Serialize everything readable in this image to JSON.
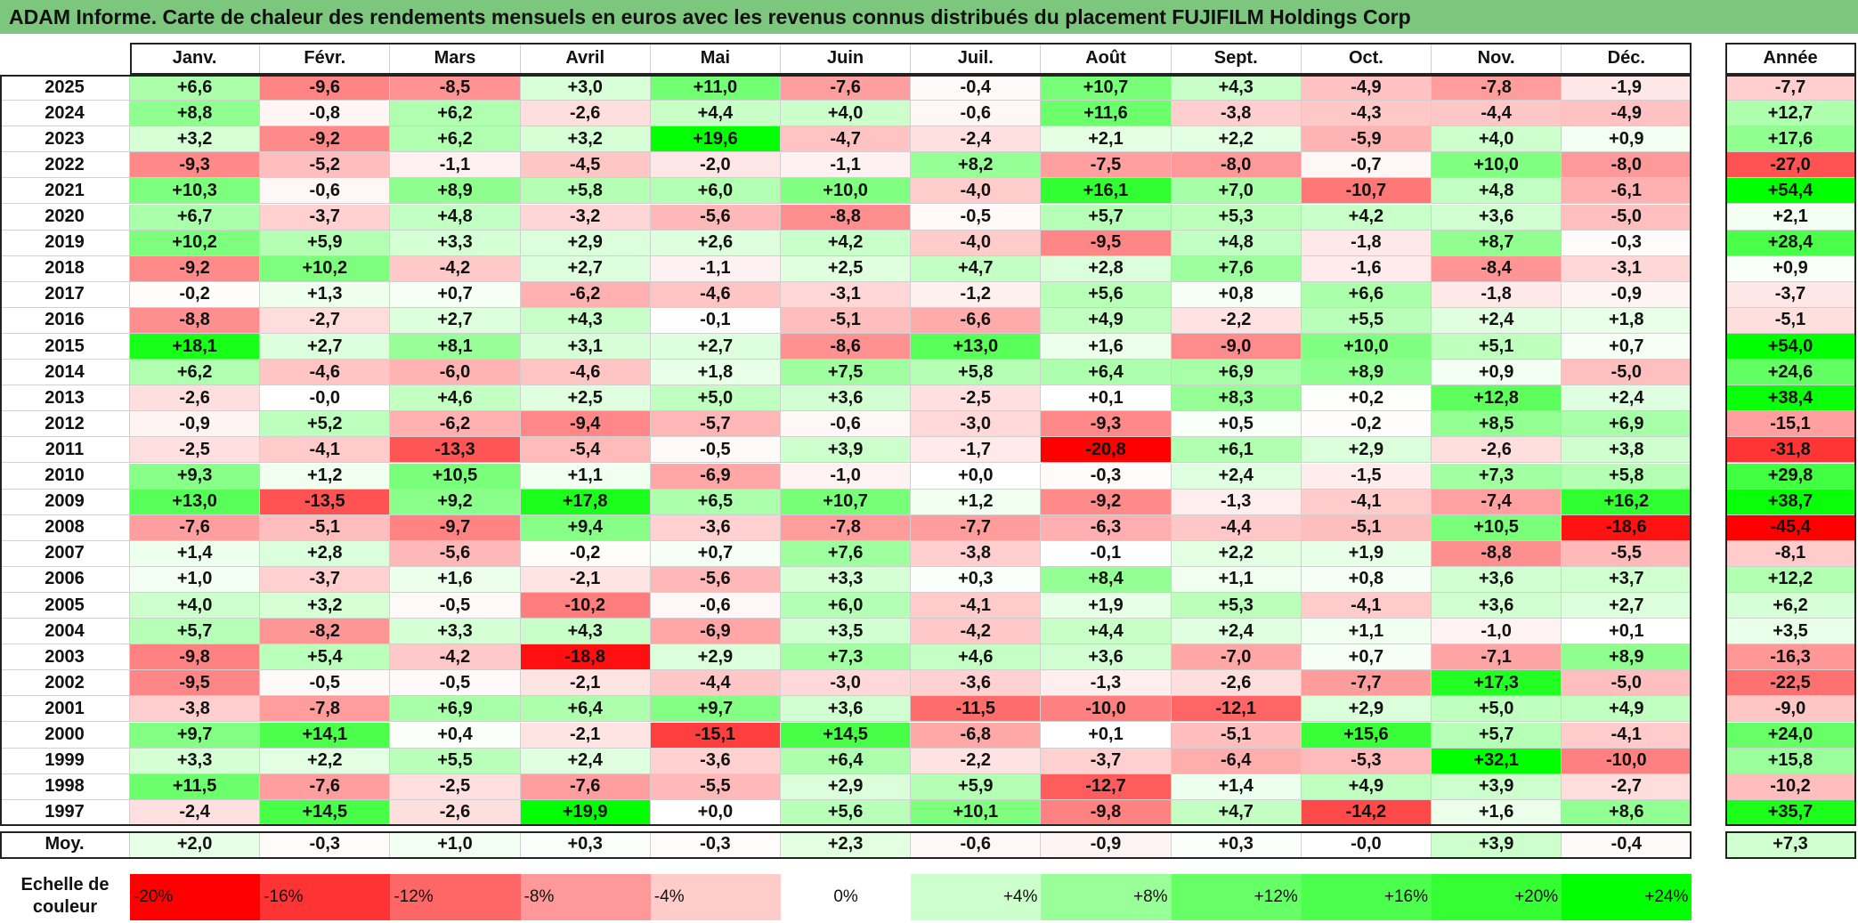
{
  "title": "ADAM Informe. Carte de chaleur des rendements mensuels en euros avec les revenus connus distribués du placement FUJIFILM Holdings Corp",
  "chart_data": {
    "type": "heatmap",
    "months": [
      "Janv.",
      "Févr.",
      "Mars",
      "Avril",
      "Mai",
      "Juin",
      "Juil.",
      "Août",
      "Sept.",
      "Oct.",
      "Nov.",
      "Déc."
    ],
    "year_header": "Année",
    "rows": [
      {
        "year": "2025",
        "values": [
          "+6,6",
          "-9,6",
          "-8,5",
          "+3,0",
          "+11,0",
          "-7,6",
          "-0,4",
          "+10,7",
          "+4,3",
          "-4,9",
          "-7,8",
          "-1,9"
        ],
        "annual": "-7,7"
      },
      {
        "year": "2024",
        "values": [
          "+8,8",
          "-0,8",
          "+6,2",
          "-2,6",
          "+4,4",
          "+4,0",
          "-0,6",
          "+11,6",
          "-3,8",
          "-4,3",
          "-4,4",
          "-4,9"
        ],
        "annual": "+12,7"
      },
      {
        "year": "2023",
        "values": [
          "+3,2",
          "-9,2",
          "+6,2",
          "+3,2",
          "+19,6",
          "-4,7",
          "-2,4",
          "+2,1",
          "+2,2",
          "-5,9",
          "+4,0",
          "+0,9"
        ],
        "annual": "+17,6"
      },
      {
        "year": "2022",
        "values": [
          "-9,3",
          "-5,2",
          "-1,1",
          "-4,5",
          "-2,0",
          "-1,1",
          "+8,2",
          "-7,5",
          "-8,0",
          "-0,7",
          "+10,0",
          "-8,0"
        ],
        "annual": "-27,0"
      },
      {
        "year": "2021",
        "values": [
          "+10,3",
          "-0,6",
          "+8,9",
          "+5,8",
          "+6,0",
          "+10,0",
          "-4,0",
          "+16,1",
          "+7,0",
          "-10,7",
          "+4,8",
          "-6,1"
        ],
        "annual": "+54,4"
      },
      {
        "year": "2020",
        "values": [
          "+6,7",
          "-3,7",
          "+4,8",
          "-3,2",
          "-5,6",
          "-8,8",
          "-0,5",
          "+5,7",
          "+5,3",
          "+4,2",
          "+3,6",
          "-5,0"
        ],
        "annual": "+2,1"
      },
      {
        "year": "2019",
        "values": [
          "+10,2",
          "+5,9",
          "+3,3",
          "+2,9",
          "+2,6",
          "+4,2",
          "-4,0",
          "-9,5",
          "+4,8",
          "-1,8",
          "+8,7",
          "-0,3"
        ],
        "annual": "+28,4"
      },
      {
        "year": "2018",
        "values": [
          "-9,2",
          "+10,2",
          "-4,2",
          "+2,7",
          "-1,1",
          "+2,5",
          "+4,7",
          "+2,8",
          "+7,6",
          "-1,6",
          "-8,4",
          "-3,1"
        ],
        "annual": "+0,9"
      },
      {
        "year": "2017",
        "values": [
          "-0,2",
          "+1,3",
          "+0,7",
          "-6,2",
          "-4,6",
          "-3,1",
          "-1,2",
          "+5,6",
          "+0,8",
          "+6,6",
          "-1,8",
          "-0,9"
        ],
        "annual": "-3,7"
      },
      {
        "year": "2016",
        "values": [
          "-8,8",
          "-2,7",
          "+2,7",
          "+4,3",
          "-0,1",
          "-5,1",
          "-6,6",
          "+4,9",
          "-2,2",
          "+5,5",
          "+2,4",
          "+1,8"
        ],
        "annual": "-5,1"
      },
      {
        "year": "2015",
        "values": [
          "+18,1",
          "+2,7",
          "+8,1",
          "+3,1",
          "+2,7",
          "-8,6",
          "+13,0",
          "+1,6",
          "-9,0",
          "+10,0",
          "+5,1",
          "+0,7"
        ],
        "annual": "+54,0"
      },
      {
        "year": "2014",
        "values": [
          "+6,2",
          "-4,6",
          "-6,0",
          "-4,6",
          "+1,8",
          "+7,5",
          "+5,8",
          "+6,4",
          "+6,9",
          "+8,9",
          "+0,9",
          "-5,0"
        ],
        "annual": "+24,6"
      },
      {
        "year": "2013",
        "values": [
          "-2,6",
          "-0,0",
          "+4,6",
          "+2,5",
          "+5,0",
          "+3,6",
          "-2,5",
          "+0,1",
          "+8,3",
          "+0,2",
          "+12,8",
          "+2,4"
        ],
        "annual": "+38,4"
      },
      {
        "year": "2012",
        "values": [
          "-0,9",
          "+5,2",
          "-6,2",
          "-9,4",
          "-5,7",
          "-0,6",
          "-3,0",
          "-9,3",
          "+0,5",
          "-0,2",
          "+8,5",
          "+6,9"
        ],
        "annual": "-15,1"
      },
      {
        "year": "2011",
        "values": [
          "-2,5",
          "-4,1",
          "-13,3",
          "-5,4",
          "-0,5",
          "+3,9",
          "-1,7",
          "-20,8",
          "+6,1",
          "+2,9",
          "-2,6",
          "+3,8"
        ],
        "annual": "-31,8"
      },
      {
        "year": "2010",
        "values": [
          "+9,3",
          "+1,2",
          "+10,5",
          "+1,1",
          "-6,9",
          "-1,0",
          "+0,0",
          "-0,3",
          "+2,4",
          "-1,5",
          "+7,3",
          "+5,8"
        ],
        "annual": "+29,8"
      },
      {
        "year": "2009",
        "values": [
          "+13,0",
          "-13,5",
          "+9,2",
          "+17,8",
          "+6,5",
          "+10,7",
          "+1,2",
          "-9,2",
          "-1,3",
          "-4,1",
          "-7,4",
          "+16,2"
        ],
        "annual": "+38,7"
      },
      {
        "year": "2008",
        "values": [
          "-7,6",
          "-5,1",
          "-9,7",
          "+9,4",
          "-3,6",
          "-7,8",
          "-7,7",
          "-6,3",
          "-4,4",
          "-5,1",
          "+10,5",
          "-18,6"
        ],
        "annual": "-45,4"
      },
      {
        "year": "2007",
        "values": [
          "+1,4",
          "+2,8",
          "-5,6",
          "-0,2",
          "+0,7",
          "+7,6",
          "-3,8",
          "-0,1",
          "+2,2",
          "+1,9",
          "-8,8",
          "-5,5"
        ],
        "annual": "-8,1"
      },
      {
        "year": "2006",
        "values": [
          "+1,0",
          "-3,7",
          "+1,6",
          "-2,1",
          "-5,6",
          "+3,3",
          "+0,3",
          "+8,4",
          "+1,1",
          "+0,8",
          "+3,6",
          "+3,7"
        ],
        "annual": "+12,2"
      },
      {
        "year": "2005",
        "values": [
          "+4,0",
          "+3,2",
          "-0,5",
          "-10,2",
          "-0,6",
          "+6,0",
          "-4,1",
          "+1,9",
          "+5,3",
          "-4,1",
          "+3,6",
          "+2,7"
        ],
        "annual": "+6,2"
      },
      {
        "year": "2004",
        "values": [
          "+5,7",
          "-8,2",
          "+3,3",
          "+4,3",
          "-6,9",
          "+3,5",
          "-4,2",
          "+4,4",
          "+2,4",
          "+1,1",
          "-1,0",
          "+0,1"
        ],
        "annual": "+3,5"
      },
      {
        "year": "2003",
        "values": [
          "-9,8",
          "+5,4",
          "-4,2",
          "-18,8",
          "+2,9",
          "+7,3",
          "+4,6",
          "+3,6",
          "-7,0",
          "+0,7",
          "-7,1",
          "+8,9"
        ],
        "annual": "-16,3"
      },
      {
        "year": "2002",
        "values": [
          "-9,5",
          "-0,5",
          "-0,5",
          "-2,1",
          "-4,4",
          "-3,0",
          "-3,6",
          "-1,3",
          "-2,6",
          "-7,7",
          "+17,3",
          "-5,0"
        ],
        "annual": "-22,5"
      },
      {
        "year": "2001",
        "values": [
          "-3,8",
          "-7,8",
          "+6,9",
          "+6,4",
          "+9,7",
          "+3,6",
          "-11,5",
          "-10,0",
          "-12,1",
          "+2,9",
          "+5,0",
          "+4,9"
        ],
        "annual": "-9,0"
      },
      {
        "year": "2000",
        "values": [
          "+9,7",
          "+14,1",
          "+0,4",
          "-2,1",
          "-15,1",
          "+14,5",
          "-6,8",
          "+0,1",
          "-5,1",
          "+15,6",
          "+5,7",
          "-4,1"
        ],
        "annual": "+24,0"
      },
      {
        "year": "1999",
        "values": [
          "+3,3",
          "+2,2",
          "+5,5",
          "+2,4",
          "-3,6",
          "+6,4",
          "-2,2",
          "-3,7",
          "-6,4",
          "-5,3",
          "+32,1",
          "-10,0"
        ],
        "annual": "+15,8"
      },
      {
        "year": "1998",
        "values": [
          "+11,5",
          "-7,6",
          "-2,5",
          "-7,6",
          "-5,5",
          "+2,9",
          "+5,9",
          "-12,7",
          "+1,4",
          "+4,9",
          "+3,9",
          "-2,7"
        ],
        "annual": "-10,2"
      },
      {
        "year": "1997",
        "values": [
          "-2,4",
          "+14,5",
          "-2,6",
          "+19,9",
          "+0,0",
          "+5,6",
          "+10,1",
          "-9,8",
          "+4,7",
          "-14,2",
          "+1,6",
          "+8,6"
        ],
        "annual": "+35,7"
      }
    ],
    "average": {
      "label": "Moy.",
      "values": [
        "+2,0",
        "-0,3",
        "+1,0",
        "+0,3",
        "-0,3",
        "+2,3",
        "-0,6",
        "-0,9",
        "+0,3",
        "-0,0",
        "+3,9",
        "-0,4"
      ],
      "annual": "+7,3"
    },
    "scale": {
      "label": "Echelle de\ncouleur",
      "stops": [
        {
          "text": "-20%",
          "value": -20,
          "align": "left",
          "color": "#ff0000"
        },
        {
          "text": "-16%",
          "value": -16,
          "align": "left",
          "color": "#ff3333"
        },
        {
          "text": "-12%",
          "value": -12,
          "align": "left",
          "color": "#ff6666"
        },
        {
          "text": "-8%",
          "value": -8,
          "align": "left",
          "color": "#ff9999"
        },
        {
          "text": "-4%",
          "value": -4,
          "align": "left",
          "color": "#ffcccc"
        },
        {
          "text": "0%",
          "value": 0,
          "align": "center",
          "color": "#ffffff"
        },
        {
          "text": "+4%",
          "value": 4,
          "align": "right",
          "color": "#ccffcc"
        },
        {
          "text": "+8%",
          "value": 8,
          "align": "right",
          "color": "#99ff99"
        },
        {
          "text": "+12%",
          "value": 12,
          "align": "right",
          "color": "#66ff66"
        },
        {
          "text": "+16%",
          "value": 16,
          "align": "right",
          "color": "#4dff4d"
        },
        {
          "text": "+20%",
          "value": 20,
          "align": "right",
          "color": "#33ff33"
        },
        {
          "text": "+24%",
          "value": 24,
          "align": "right",
          "color": "#00ff00"
        }
      ]
    }
  },
  "colors": {
    "title_bar": "#7dc67d",
    "negative_max": "#ff0000",
    "positive_max": "#00ff00",
    "neutral": "#ffffff"
  }
}
